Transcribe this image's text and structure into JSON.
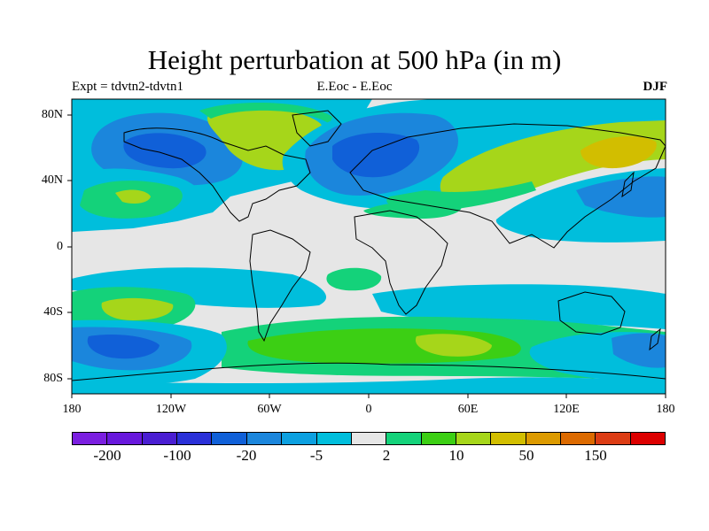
{
  "title": "Height perturbation at 500 hPa (in m)",
  "subtitle": {
    "left": "Expt = tdvtn2-tdvtn1",
    "center": "E.Eoc - E.Eoc",
    "right": "DJF"
  },
  "lat_labels": [
    "80N",
    "40N",
    "0",
    "40S",
    "80S"
  ],
  "lon_labels": [
    "180",
    "120W",
    "60W",
    "0",
    "60E",
    "120E",
    "180"
  ],
  "colorbar": {
    "colors": [
      "#7b1fe0",
      "#6818dc",
      "#4a1ed2",
      "#2a30d8",
      "#1060d8",
      "#1b86dc",
      "#0ca0e0",
      "#00bedc",
      "#e6e6e6",
      "#14d27a",
      "#3ccf14",
      "#a6d61a",
      "#d2be00",
      "#dc9a00",
      "#dc6a00",
      "#dc3c14",
      "#dc0000"
    ],
    "labels": [
      "-200",
      "-100",
      "-20",
      "-5",
      "2",
      "10",
      "50",
      "150"
    ]
  },
  "palette": {
    "background": "#e6e6e6",
    "neg_light": "#00bedc",
    "neg_mid": "#1b86dc",
    "neg_strong": "#1060d8",
    "neg_deep": "#2a30d8",
    "pos_light": "#14d27a",
    "pos_mid": "#3ccf14",
    "pos_strong": "#a6d61a",
    "pos_deep": "#d2be00"
  }
}
